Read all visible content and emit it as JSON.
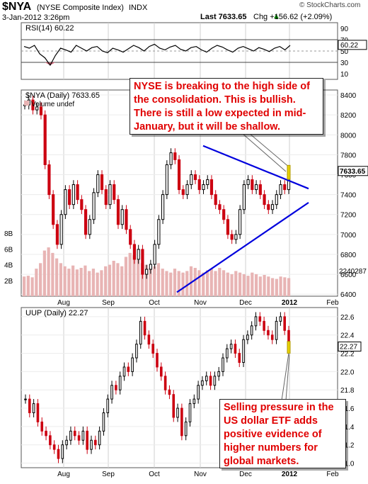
{
  "header": {
    "symbol": "$NYA",
    "name": "(NYSE Composite Index)",
    "exchange": "INDX",
    "date": "3-Jan-2012 3:26pm",
    "copyright": "© StockCharts.com",
    "last": "Last 7633.65",
    "chg": "Chg +156.62 (+2.09%)",
    "last_arrow": "▲"
  },
  "annotations": {
    "nyse_note": "NYSE is breaking to the high side of the consolidation.  This is bullish. There is still a low expected in mid-January, but it will be shallow.",
    "uup_note": "Selling pressure in the US dollar ETF adds positive evidence of higher numbers for global markets."
  },
  "colors": {
    "up": "#000000",
    "down": "#cc0011",
    "volume": "#e8b4b4",
    "trendline": "#0000dd",
    "rsi_dip": "#cc6677",
    "last_marker": "#e6d000",
    "callout_text": "#e00000"
  },
  "chart_data": [
    {
      "type": "line",
      "title": "RSI(14) 60.22",
      "x_labels": [
        "Aug",
        "Sep",
        "Oct",
        "Nov",
        "Dec",
        "2012",
        "Feb"
      ],
      "ylim": [
        0,
        100
      ],
      "y_ticks": [
        "90",
        "70",
        "50",
        "30",
        "10"
      ],
      "guide_lines": [
        70,
        30
      ],
      "last_value": "60.22",
      "values": [
        58,
        55,
        60,
        45,
        38,
        25,
        42,
        55,
        52,
        48,
        60,
        55,
        50,
        56,
        58,
        50,
        47,
        55,
        52,
        48,
        54,
        60,
        56,
        50,
        58,
        62,
        55,
        52,
        57,
        60,
        53,
        50,
        56,
        58,
        52,
        48,
        55,
        60,
        57,
        52,
        48,
        55,
        58,
        54,
        50,
        56,
        53,
        49,
        55,
        58,
        52,
        60
      ]
    },
    {
      "type": "candlestick",
      "title": "$NYA (Daily) 7633.65",
      "legend": [
        "Volume undef"
      ],
      "x_labels": [
        "Aug",
        "Sep",
        "Oct",
        "Nov",
        "Dec",
        "2012",
        "Feb"
      ],
      "ylim": [
        6380,
        8450
      ],
      "y_ticks": [
        "8400",
        "8200",
        "8000",
        "7800",
        "7600",
        "7400",
        "7200",
        "7000",
        "6800",
        "6600",
        "6400"
      ],
      "volume_ticks": [
        "8B",
        "6B",
        "4B",
        "2B"
      ],
      "volume_ylim": [
        0,
        9
      ],
      "right_labels": [
        "7633.65",
        "2240287"
      ],
      "closes": [
        8300,
        8350,
        8250,
        8280,
        8200,
        7700,
        7400,
        7100,
        6900,
        7200,
        7450,
        7300,
        7500,
        7350,
        7250,
        7000,
        7150,
        7420,
        7600,
        7450,
        7300,
        7500,
        7350,
        7100,
        7250,
        7050,
        6900,
        6750,
        6850,
        6600,
        6650,
        6700,
        6900,
        7150,
        7400,
        7700,
        7820,
        7750,
        7450,
        7400,
        7500,
        7600,
        7550,
        7450,
        7500,
        7550,
        7400,
        7300,
        7250,
        7150,
        7000,
        6950,
        7000,
        7250,
        7500,
        7550,
        7450,
        7500,
        7400,
        7300,
        7250,
        7300,
        7400,
        7500,
        7450,
        7633.65
      ],
      "volumes": [
        2.5,
        2.6,
        2.4,
        3.5,
        4.2,
        5.8,
        6.2,
        5.5,
        4.8,
        4.2,
        3.8,
        3.5,
        3.9,
        3.4,
        3.6,
        3.9,
        3.2,
        3.5,
        3.0,
        3.3,
        3.8,
        4.0,
        4.5,
        4.2,
        3.8,
        5.0,
        5.5,
        5.2,
        4.6,
        4.2,
        4.0,
        3.6,
        3.8,
        4.2,
        3.5,
        3.2,
        3.0,
        3.5,
        3.2,
        3.0,
        3.2,
        3.8,
        3.6,
        3.3,
        3.0,
        3.3,
        3.5,
        3.2,
        3.6,
        3.3,
        3.0,
        2.8,
        3.2,
        3.0,
        2.8,
        2.6,
        3.0,
        2.8,
        2.5,
        2.7,
        2.5,
        2.3,
        2.2,
        2.5,
        2.4,
        2.3
      ],
      "trendlines": [
        {
          "from": [
            41,
            7890
          ],
          "to": [
            72,
            7460
          ]
        },
        {
          "from": [
            33,
            6420
          ],
          "to": [
            72,
            7320
          ]
        }
      ]
    },
    {
      "type": "candlestick",
      "title": "UUP (Daily) 22.27",
      "x_labels": [
        "Aug",
        "Sep",
        "Oct",
        "Nov",
        "Dec",
        "2012",
        "Feb"
      ],
      "ylim": [
        20.95,
        22.7
      ],
      "y_ticks": [
        "22.6",
        "22.4",
        "22.2",
        "22.0",
        "21.8",
        "21.6",
        "21.4",
        "21.2",
        "21.0"
      ],
      "last_value": "22.27",
      "closes": [
        21.7,
        21.55,
        21.65,
        21.45,
        21.35,
        21.3,
        21.2,
        21.15,
        21.05,
        21.2,
        21.25,
        21.35,
        21.3,
        21.25,
        21.35,
        21.15,
        21.25,
        21.2,
        21.35,
        21.55,
        21.7,
        21.85,
        21.8,
        21.95,
        22.05,
        22.0,
        22.15,
        22.3,
        22.55,
        22.4,
        22.3,
        22.2,
        22.05,
        21.95,
        21.8,
        21.75,
        21.5,
        21.6,
        21.3,
        21.45,
        21.65,
        21.7,
        21.85,
        21.9,
        21.95,
        21.85,
        21.95,
        22.0,
        22.15,
        22.25,
        22.3,
        22.2,
        22.1,
        22.35,
        22.4,
        22.5,
        22.6,
        22.55,
        22.45,
        22.4,
        22.35,
        22.55,
        22.6,
        22.45,
        22.27
      ]
    }
  ]
}
